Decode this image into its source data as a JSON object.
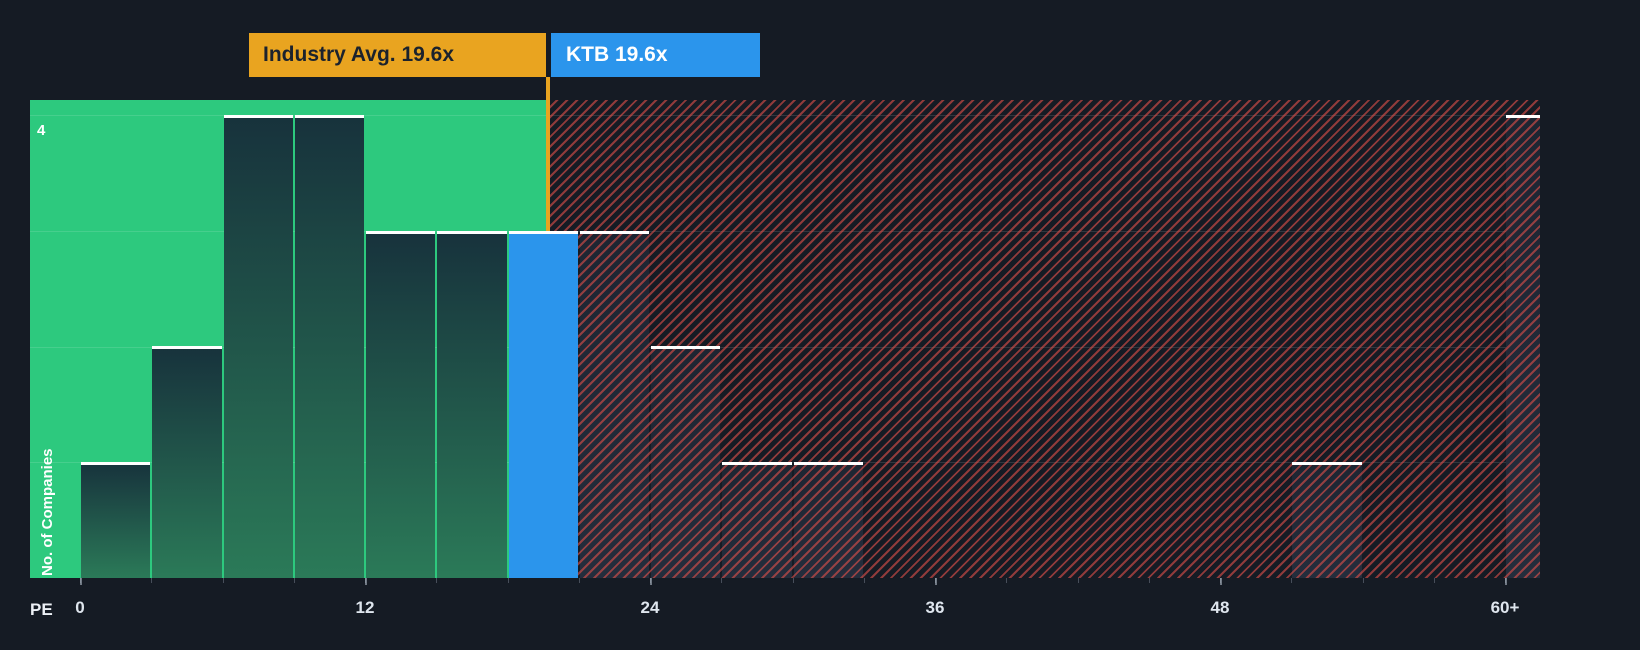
{
  "chart_data": {
    "type": "bar",
    "subtype": "histogram",
    "title": "",
    "xlabel": "PE",
    "ylabel": "No. of Companies",
    "bin_width": 3,
    "xlim": [
      0,
      61.5
    ],
    "ylim": [
      0,
      4.13
    ],
    "grid": "faint-horizontal",
    "legend": "none",
    "x_ticks": [
      {
        "value": 0,
        "label": "0"
      },
      {
        "value": 12,
        "label": "12"
      },
      {
        "value": 24,
        "label": "24"
      },
      {
        "value": 36,
        "label": "36"
      },
      {
        "value": 48,
        "label": "48"
      },
      {
        "value": 60,
        "label": "60+"
      }
    ],
    "y_tick": {
      "value": 4,
      "label": "4"
    },
    "bars": [
      {
        "x_start": 0,
        "value": 1,
        "zone": "below"
      },
      {
        "x_start": 3,
        "value": 2,
        "zone": "below"
      },
      {
        "x_start": 6,
        "value": 4,
        "zone": "below"
      },
      {
        "x_start": 9,
        "value": 4,
        "zone": "below"
      },
      {
        "x_start": 12,
        "value": 3,
        "zone": "below"
      },
      {
        "x_start": 15,
        "value": 3,
        "zone": "below"
      },
      {
        "x_start": 18,
        "value": 3,
        "zone": "company"
      },
      {
        "x_start": 21,
        "value": 3,
        "zone": "above"
      },
      {
        "x_start": 24,
        "value": 2,
        "zone": "above"
      },
      {
        "x_start": 27,
        "value": 1,
        "zone": "above"
      },
      {
        "x_start": 30,
        "value": 1,
        "zone": "above"
      },
      {
        "x_start": 51,
        "value": 1,
        "zone": "above"
      },
      {
        "x_start": 60,
        "value": 4,
        "zone": "above"
      }
    ],
    "industry_avg": {
      "value": 19.6,
      "label": "Industry Avg. 19.6x"
    },
    "company": {
      "ticker": "KTB",
      "value": 19.6,
      "label": "KTB 19.6x"
    },
    "colors": {
      "background": "#151b24",
      "below_zone": "#2dc97e",
      "bar_green_top": "#17323c",
      "bar_green_bottom": "#2b7a58",
      "bar_dark_top": "#1d2532",
      "bar_dark_bottom": "#242d3c",
      "company_bar": "#2b95ec",
      "avg_line": "#e9a420",
      "avg_label_bg": "#e9a420",
      "avg_label_text": "#1b222d",
      "company_label_bg": "#2b95ec",
      "company_label_text": "#ffffff",
      "hatch_line": "#e2504a",
      "bar_top_border": "#ffffff",
      "gridline": "rgba(255,255,255,0.12)",
      "tick": "rgba(190,200,214,0.55)"
    }
  }
}
